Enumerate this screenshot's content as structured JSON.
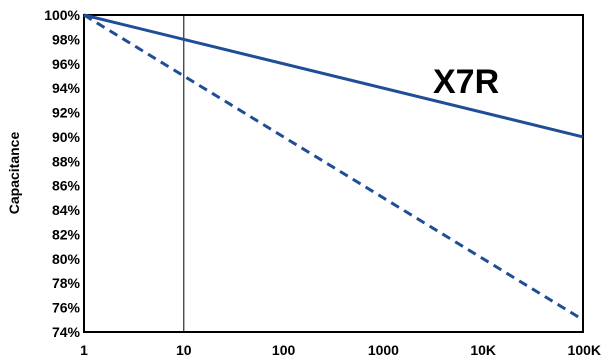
{
  "chart_data": {
    "type": "line",
    "title": "",
    "xlabel": "",
    "ylabel": "Capacitance",
    "x_scale": "log",
    "xlim": [
      1,
      100000
    ],
    "ylim": [
      74,
      100
    ],
    "x_tick_values": [
      1,
      10,
      100,
      1000,
      10000,
      100000
    ],
    "x_tick_labels": [
      "1",
      "10",
      "100",
      "1000",
      "10K",
      "100K"
    ],
    "y_tick_values": [
      100,
      98,
      96,
      94,
      92,
      90,
      88,
      86,
      84,
      82,
      80,
      78,
      76,
      74
    ],
    "y_tick_labels": [
      "100%",
      "98%",
      "96%",
      "94%",
      "92%",
      "90%",
      "88%",
      "86%",
      "84%",
      "82%",
      "80%",
      "78%",
      "76%",
      "74%"
    ],
    "grid": false,
    "reference_lines": [
      {
        "axis": "x",
        "value": 10
      }
    ],
    "series": [
      {
        "name": "X7R",
        "style": "solid",
        "color": "#1f4e96",
        "x": [
          1,
          100000
        ],
        "y": [
          100,
          90
        ]
      },
      {
        "style": "dashed",
        "color": "#1f4e96",
        "x": [
          1,
          100000
        ],
        "y": [
          100,
          75
        ]
      }
    ]
  }
}
